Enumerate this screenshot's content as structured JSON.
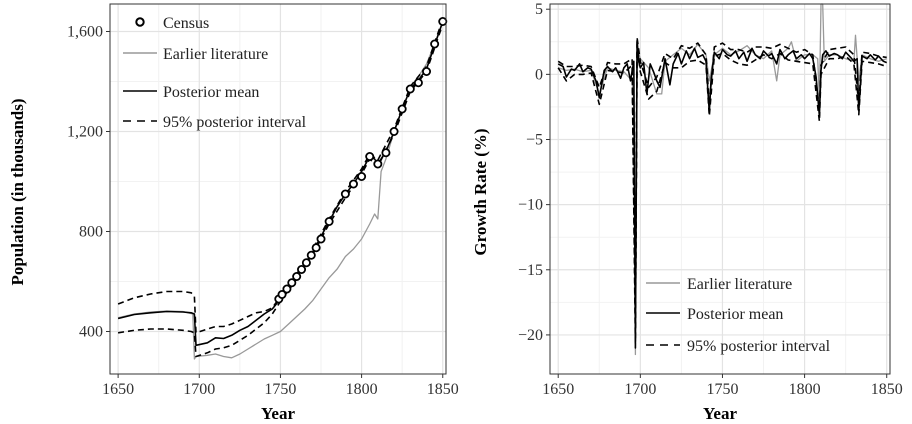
{
  "chart_data": [
    {
      "type": "line",
      "title": "",
      "xlabel": "Year",
      "ylabel": "Population (in thousands)",
      "xlim": [
        1645,
        1852
      ],
      "ylim": [
        230,
        1710
      ],
      "x_ticks": [
        1650,
        1700,
        1750,
        1800,
        1850
      ],
      "x_tick_labels": [
        "1650",
        "1700",
        "1750",
        "1800",
        "1850"
      ],
      "y_ticks": [
        400,
        800,
        1200,
        1600
      ],
      "y_tick_labels": [
        "400",
        "800",
        "1,200",
        "1,600"
      ],
      "grid": true,
      "legend_position": "top-left",
      "legend": [
        "Census",
        "Earlier literature",
        "Posterior mean",
        "95% posterior interval"
      ],
      "series": [
        {
          "name": "Earlier literature",
          "color": "#999999",
          "style": "solid",
          "x": [
            1650,
            1660,
            1670,
            1680,
            1690,
            1696,
            1697,
            1698,
            1705,
            1710,
            1715,
            1720,
            1725,
            1730,
            1735,
            1740,
            1745,
            1750,
            1755,
            1760,
            1765,
            1770,
            1775,
            1780,
            1785,
            1790,
            1795,
            1800,
            1805,
            1808,
            1810,
            1812,
            1815,
            1820,
            1825,
            1830,
            1835,
            1840,
            1845,
            1850
          ],
          "y": [
            455,
            470,
            478,
            482,
            480,
            470,
            290,
            300,
            305,
            310,
            300,
            295,
            310,
            330,
            350,
            370,
            385,
            400,
            430,
            460,
            490,
            525,
            570,
            615,
            650,
            700,
            730,
            770,
            830,
            870,
            850,
            1040,
            1090,
            1200,
            1290,
            1370,
            1420,
            1470,
            1550,
            1640
          ]
        },
        {
          "name": "Posterior mean",
          "color": "#000000",
          "style": "solid",
          "x": [
            1650,
            1660,
            1670,
            1680,
            1690,
            1695,
            1697,
            1698,
            1705,
            1710,
            1715,
            1720,
            1725,
            1730,
            1735,
            1740,
            1745,
            1750,
            1755,
            1760,
            1765,
            1770,
            1775,
            1780,
            1785,
            1790,
            1795,
            1800,
            1805,
            1808,
            1810,
            1815,
            1820,
            1825,
            1830,
            1835,
            1840,
            1845,
            1850
          ],
          "y": [
            452,
            468,
            475,
            480,
            478,
            475,
            470,
            345,
            355,
            375,
            372,
            385,
            405,
            420,
            445,
            470,
            490,
            530,
            575,
            620,
            670,
            720,
            780,
            840,
            900,
            950,
            990,
            1040,
            1100,
            1090,
            1070,
            1120,
            1200,
            1290,
            1370,
            1405,
            1450,
            1545,
            1640
          ]
        },
        {
          "name": "95% posterior interval (upper)",
          "color": "#000000",
          "style": "dashed",
          "x": [
            1650,
            1660,
            1670,
            1680,
            1690,
            1695,
            1697,
            1698,
            1705,
            1710,
            1715,
            1720,
            1725,
            1730,
            1735,
            1740,
            1745,
            1750,
            1760,
            1770,
            1780,
            1790,
            1800,
            1805,
            1810,
            1820,
            1830,
            1840,
            1850
          ],
          "y": [
            510,
            535,
            550,
            560,
            560,
            555,
            540,
            395,
            410,
            420,
            420,
            430,
            445,
            460,
            475,
            480,
            495,
            540,
            630,
            730,
            850,
            960,
            1050,
            1110,
            1085,
            1210,
            1380,
            1460,
            1650
          ]
        },
        {
          "name": "95% posterior interval (lower)",
          "color": "#000000",
          "style": "dashed",
          "x": [
            1650,
            1660,
            1670,
            1680,
            1690,
            1695,
            1697,
            1698,
            1705,
            1710,
            1715,
            1720,
            1725,
            1730,
            1735,
            1740,
            1745,
            1750,
            1760,
            1770,
            1780,
            1790,
            1800,
            1805,
            1810,
            1820,
            1830,
            1840,
            1850
          ],
          "y": [
            395,
            405,
            410,
            410,
            405,
            400,
            395,
            300,
            315,
            330,
            335,
            345,
            365,
            385,
            410,
            435,
            470,
            520,
            610,
            710,
            830,
            935,
            1030,
            1090,
            1060,
            1190,
            1360,
            1440,
            1630
          ]
        }
      ],
      "census": {
        "name": "Census",
        "x": [
          1749,
          1751,
          1754,
          1757,
          1760,
          1763,
          1766,
          1769,
          1772,
          1775,
          1780,
          1790,
          1795,
          1800,
          1805,
          1810,
          1815,
          1820,
          1825,
          1830,
          1835,
          1840,
          1845,
          1850
        ],
        "y": [
          530,
          548,
          570,
          595,
          620,
          648,
          675,
          705,
          735,
          770,
          840,
          950,
          990,
          1020,
          1100,
          1070,
          1115,
          1200,
          1290,
          1370,
          1395,
          1440,
          1550,
          1640
        ]
      }
    },
    {
      "type": "line",
      "title": "",
      "xlabel": "Year",
      "ylabel": "Growth Rate (%)",
      "xlim": [
        1645,
        1852
      ],
      "ylim": [
        -23,
        5.4
      ],
      "x_ticks": [
        1650,
        1700,
        1750,
        1800,
        1850
      ],
      "x_tick_labels": [
        "1650",
        "1700",
        "1750",
        "1800",
        "1850"
      ],
      "y_ticks": [
        5,
        0,
        -5,
        -10,
        -15,
        -20
      ],
      "y_tick_labels": [
        "5",
        "0",
        "−5",
        "−10",
        "−15",
        "−20"
      ],
      "grid": true,
      "legend_position": "bottom-right",
      "legend": [
        "Earlier literature",
        "Posterior mean",
        "95% posterior interval"
      ],
      "series": [
        {
          "name": "Earlier literature",
          "color": "#999999",
          "style": "solid",
          "x": [
            1650,
            1655,
            1660,
            1665,
            1670,
            1675,
            1680,
            1685,
            1690,
            1695,
            1696,
            1697,
            1698,
            1700,
            1705,
            1710,
            1713,
            1715,
            1720,
            1725,
            1730,
            1735,
            1740,
            1742,
            1745,
            1750,
            1755,
            1760,
            1765,
            1770,
            1775,
            1780,
            1783,
            1785,
            1790,
            1792,
            1795,
            1800,
            1805,
            1808,
            1809,
            1810,
            1811,
            1812,
            1815,
            1820,
            1825,
            1830,
            1831,
            1833,
            1835,
            1840,
            1845,
            1850
          ],
          "y": [
            0.5,
            0.3,
            0.4,
            0.2,
            0.3,
            -1.5,
            0.5,
            0.3,
            0.2,
            -0.5,
            -2.0,
            -21.5,
            2.0,
            1.2,
            0.5,
            -1.5,
            -1.5,
            1.0,
            1.5,
            2.0,
            1.5,
            2.3,
            1.5,
            -0.5,
            1.5,
            2.0,
            1.5,
            1.8,
            2.2,
            1.5,
            1.2,
            1.8,
            -0.5,
            1.5,
            2.0,
            2.5,
            1.0,
            1.5,
            1.5,
            1.2,
            -2.0,
            5.4,
            5.4,
            1.0,
            1.5,
            1.5,
            1.2,
            1.0,
            3.0,
            -0.5,
            1.5,
            1.2,
            1.0,
            1.2
          ]
        },
        {
          "name": "Posterior mean",
          "color": "#000000",
          "style": "solid",
          "x": [
            1650,
            1653,
            1655,
            1658,
            1660,
            1663,
            1665,
            1668,
            1670,
            1673,
            1675,
            1678,
            1680,
            1683,
            1685,
            1688,
            1690,
            1692,
            1694,
            1696,
            1697,
            1698,
            1699,
            1700,
            1702,
            1704,
            1706,
            1708,
            1710,
            1712,
            1715,
            1718,
            1720,
            1723,
            1725,
            1728,
            1730,
            1733,
            1735,
            1738,
            1740,
            1742,
            1743,
            1745,
            1748,
            1750,
            1753,
            1755,
            1758,
            1760,
            1763,
            1765,
            1768,
            1770,
            1773,
            1775,
            1778,
            1780,
            1783,
            1785,
            1788,
            1790,
            1793,
            1795,
            1798,
            1800,
            1803,
            1805,
            1807,
            1809,
            1810,
            1811,
            1813,
            1815,
            1818,
            1820,
            1823,
            1825,
            1828,
            1830,
            1832,
            1833,
            1835,
            1838,
            1840,
            1843,
            1845,
            1848,
            1850
          ],
          "y": [
            0.8,
            0.6,
            -0.2,
            0.4,
            0.3,
            0.8,
            0.2,
            0.5,
            0.4,
            -0.5,
            -1.8,
            0.3,
            0.6,
            0.2,
            0.5,
            -0.3,
            0.5,
            0.8,
            -0.5,
            1.0,
            -20.5,
            2.6,
            1.0,
            0.5,
            0.9,
            -1.5,
            0.8,
            0.2,
            -0.5,
            -1.0,
            1.2,
            -0.8,
            0.8,
            1.6,
            0.8,
            1.8,
            1.2,
            2.0,
            1.3,
            1.5,
            1.0,
            -2.9,
            -0.5,
            1.7,
            1.2,
            1.9,
            1.5,
            1.4,
            1.8,
            1.2,
            1.7,
            1.0,
            2.0,
            1.5,
            1.2,
            1.8,
            1.4,
            1.6,
            0.8,
            1.9,
            1.2,
            1.5,
            1.8,
            1.2,
            1.5,
            1.2,
            1.6,
            1.2,
            -0.2,
            -3.2,
            0.3,
            1.5,
            1.8,
            1.4,
            1.6,
            1.5,
            1.2,
            1.7,
            1.3,
            1.0,
            1.2,
            -2.8,
            1.4,
            1.2,
            1.5,
            1.1,
            1.4,
            1.0,
            0.9
          ]
        },
        {
          "name": "95% posterior interval (upper)",
          "color": "#000000",
          "style": "dashed",
          "x": [
            1650,
            1655,
            1660,
            1665,
            1670,
            1675,
            1680,
            1685,
            1690,
            1695,
            1697,
            1698,
            1700,
            1705,
            1710,
            1715,
            1720,
            1725,
            1730,
            1735,
            1740,
            1742,
            1745,
            1750,
            1755,
            1760,
            1765,
            1770,
            1775,
            1780,
            1785,
            1790,
            1795,
            1800,
            1805,
            1809,
            1810,
            1815,
            1820,
            1825,
            1830,
            1833,
            1835,
            1840,
            1845,
            1850
          ],
          "y": [
            1.0,
            0.6,
            0.6,
            0.7,
            0.6,
            -1.0,
            0.9,
            0.8,
            0.8,
            1.2,
            -19.5,
            2.8,
            1.0,
            -1.0,
            -0.2,
            1.6,
            1.2,
            2.2,
            2.0,
            2.4,
            1.5,
            -2.3,
            2.1,
            2.4,
            1.9,
            1.9,
            1.7,
            2.1,
            2.1,
            2.0,
            2.3,
            2.0,
            1.7,
            1.9,
            1.5,
            -2.7,
            0.7,
            1.9,
            2.0,
            2.1,
            1.5,
            -2.3,
            1.7,
            1.6,
            1.4,
            1.3
          ]
        },
        {
          "name": "95% posterior interval (lower)",
          "color": "#000000",
          "style": "dashed",
          "x": [
            1650,
            1655,
            1660,
            1665,
            1670,
            1675,
            1680,
            1685,
            1690,
            1695,
            1697,
            1698,
            1700,
            1705,
            1710,
            1715,
            1720,
            1725,
            1730,
            1735,
            1740,
            1742,
            1745,
            1750,
            1755,
            1760,
            1765,
            1770,
            1775,
            1780,
            1785,
            1790,
            1795,
            1800,
            1805,
            1809,
            1810,
            1815,
            1820,
            1825,
            1830,
            1833,
            1835,
            1840,
            1845,
            1850
          ],
          "y": [
            0.5,
            -0.5,
            0.0,
            0.0,
            0.1,
            -2.3,
            0.3,
            0.2,
            0.1,
            0.7,
            -21.0,
            2.3,
            0.2,
            -1.9,
            -1.3,
            0.9,
            0.5,
            0.5,
            1.0,
            1.1,
            0.7,
            -3.2,
            1.4,
            1.6,
            1.1,
            0.8,
            0.7,
            1.1,
            1.5,
            1.2,
            1.6,
            1.1,
            1.0,
            0.9,
            0.8,
            -3.6,
            0.0,
            1.2,
            1.2,
            1.4,
            0.8,
            -3.1,
            1.0,
            0.9,
            0.8,
            0.6
          ]
        }
      ]
    }
  ]
}
